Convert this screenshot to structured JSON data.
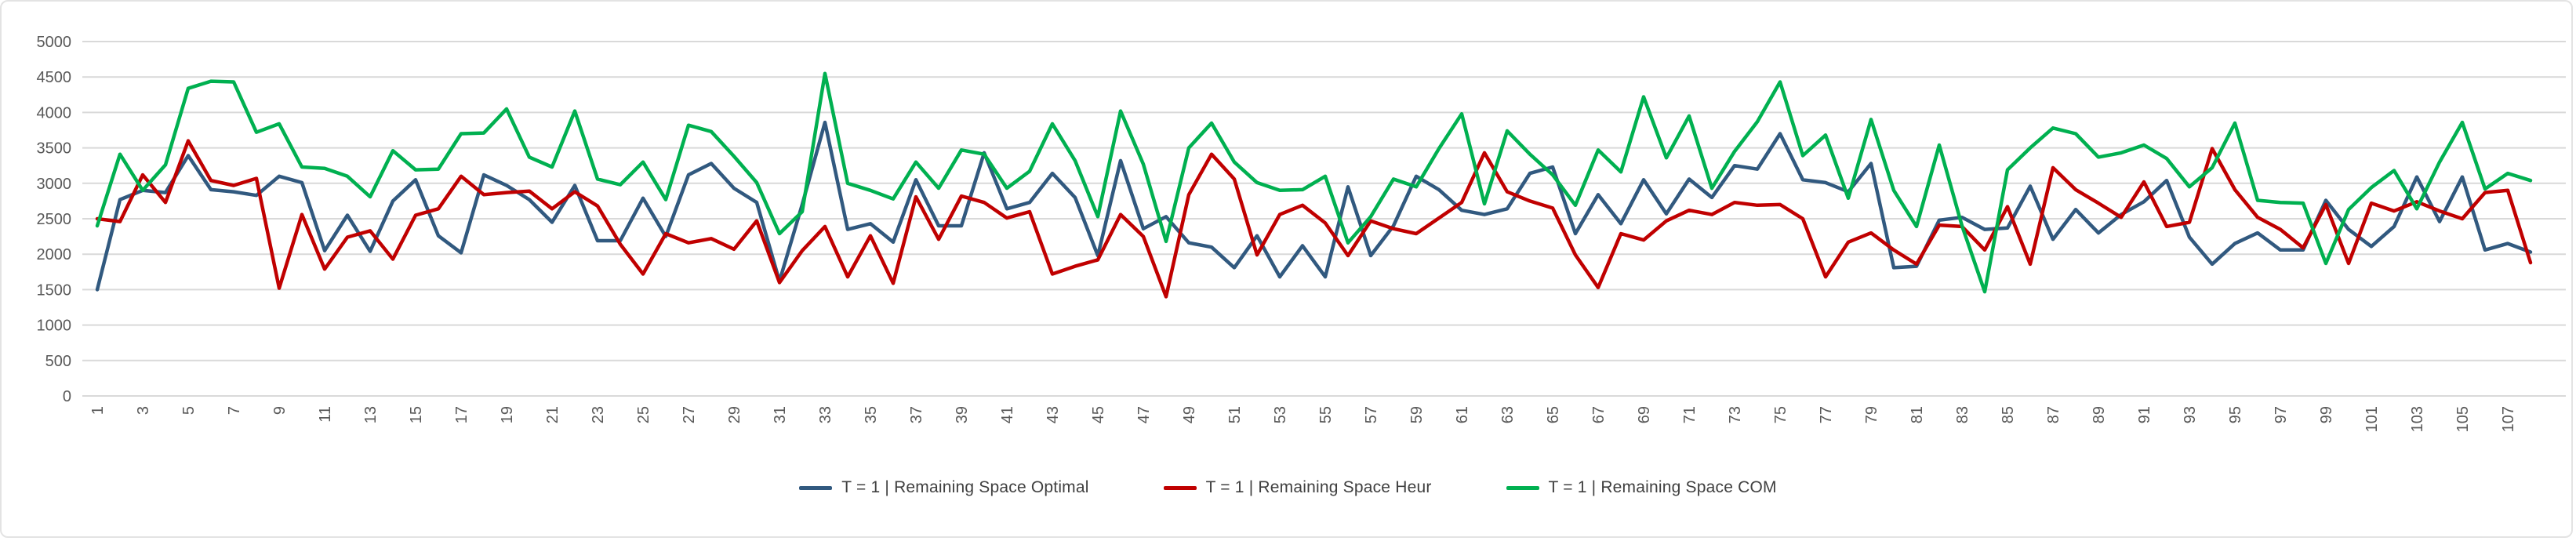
{
  "chart_data": {
    "type": "line",
    "title": "",
    "xlabel": "",
    "ylabel": "",
    "ylim": [
      0,
      5000
    ],
    "y_tick_step": 500,
    "y_tick_labels": [
      "0",
      "500",
      "1000",
      "1500",
      "2000",
      "2500",
      "3000",
      "3500",
      "4000",
      "4500",
      "5000"
    ],
    "x_count": 108,
    "x_tick_labels": [
      "1",
      "3",
      "5",
      "7",
      "9",
      "11",
      "13",
      "15",
      "17",
      "19",
      "21",
      "23",
      "25",
      "27",
      "29",
      "31",
      "33",
      "35",
      "37",
      "39",
      "41",
      "43",
      "45",
      "47",
      "49",
      "51",
      "53",
      "55",
      "57",
      "59",
      "61",
      "63",
      "65",
      "67",
      "69",
      "71",
      "73",
      "75",
      "77",
      "79",
      "81",
      "83",
      "85",
      "87",
      "89",
      "91",
      "93",
      "95",
      "97",
      "99",
      "101",
      "103",
      "105",
      "107"
    ],
    "grid": "horizontal",
    "legend_position": "bottom",
    "axis_text_color": "#595959",
    "gridline_color": "#d9d9d9",
    "series": [
      {
        "name": "T = 1 | Remaining Space Optimal",
        "color": "#31597f",
        "values": [
          1500,
          2770,
          2900,
          2870,
          3390,
          2910,
          2880,
          2830,
          3100,
          3010,
          2050,
          2550,
          2040,
          2750,
          3050,
          2260,
          2020,
          3120,
          2970,
          2770,
          2450,
          2970,
          2190,
          2190,
          2790,
          2250,
          3120,
          3280,
          2930,
          2730,
          1620,
          2700,
          3860,
          2350,
          2430,
          2170,
          3050,
          2400,
          2400,
          3430,
          2640,
          2730,
          3140,
          2800,
          1980,
          3320,
          2360,
          2530,
          2160,
          2100,
          1810,
          2260,
          1680,
          2120,
          1680,
          2950,
          1980,
          2400,
          3100,
          2910,
          2620,
          2560,
          2640,
          3140,
          3230,
          2290,
          2840,
          2430,
          3050,
          2570,
          3060,
          2800,
          3250,
          3200,
          3700,
          3050,
          3010,
          2880,
          3280,
          1810,
          1830,
          2480,
          2520,
          2350,
          2370,
          2960,
          2210,
          2630,
          2300,
          2560,
          2740,
          3040,
          2240,
          1860,
          2150,
          2300,
          2060,
          2060,
          2760,
          2350,
          2110,
          2390,
          3090,
          2460,
          3090,
          2060,
          2150,
          2030
        ]
      },
      {
        "name": "T = 1 | Remaining Space Heur",
        "color": "#c00000",
        "values": [
          2500,
          2460,
          3120,
          2730,
          3600,
          3040,
          2970,
          3070,
          1520,
          2560,
          1790,
          2240,
          2330,
          1930,
          2550,
          2640,
          3100,
          2840,
          2870,
          2890,
          2640,
          2880,
          2680,
          2140,
          1720,
          2290,
          2160,
          2220,
          2070,
          2470,
          1600,
          2050,
          2390,
          1680,
          2260,
          1590,
          2810,
          2210,
          2820,
          2730,
          2510,
          2600,
          1720,
          1830,
          1920,
          2560,
          2250,
          1400,
          2840,
          3410,
          3060,
          1990,
          2560,
          2690,
          2440,
          1980,
          2470,
          2360,
          2290,
          2510,
          2730,
          3430,
          2880,
          2750,
          2650,
          1990,
          1530,
          2290,
          2200,
          2470,
          2620,
          2560,
          2730,
          2690,
          2700,
          2500,
          1680,
          2170,
          2300,
          2060,
          1860,
          2410,
          2390,
          2060,
          2670,
          1860,
          3220,
          2910,
          2720,
          2520,
          3020,
          2390,
          2450,
          3490,
          2910,
          2520,
          2350,
          2090,
          2700,
          1870,
          2720,
          2610,
          2740,
          2610,
          2500,
          2870,
          2900,
          1880
        ]
      },
      {
        "name": "T = 1 | Remaining Space COM",
        "color": "#00b050",
        "values": [
          2400,
          3410,
          2900,
          3260,
          4340,
          4440,
          4430,
          3720,
          3840,
          3230,
          3210,
          3100,
          2810,
          3460,
          3190,
          3200,
          3700,
          3710,
          4050,
          3370,
          3230,
          4020,
          3060,
          2980,
          3300,
          2770,
          3820,
          3730,
          3380,
          3010,
          2290,
          2600,
          4550,
          3000,
          2900,
          2780,
          3300,
          2930,
          3470,
          3410,
          2930,
          3170,
          3840,
          3320,
          2530,
          4020,
          3270,
          2180,
          3500,
          3850,
          3300,
          3010,
          2900,
          2910,
          3100,
          2160,
          2530,
          3060,
          2950,
          3490,
          3980,
          2710,
          3740,
          3410,
          3120,
          2690,
          3470,
          3160,
          4220,
          3360,
          3950,
          2930,
          3450,
          3870,
          4430,
          3390,
          3680,
          2790,
          3900,
          2900,
          2390,
          3540,
          2400,
          1470,
          3190,
          3500,
          3780,
          3700,
          3370,
          3430,
          3540,
          3350,
          2950,
          3220,
          3850,
          2760,
          2730,
          2720,
          1870,
          2630,
          2940,
          3180,
          2640,
          3300,
          3860,
          2920,
          3140,
          3040
        ]
      }
    ]
  }
}
